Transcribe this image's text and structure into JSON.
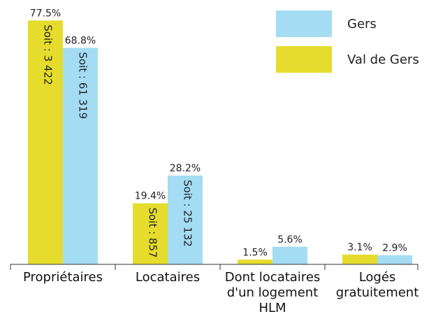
{
  "chart_data": {
    "type": "bar",
    "categories": [
      "Propriétaires",
      "Locataires",
      "Dont locataires d'un logement HLM",
      "Logés gratuitement"
    ],
    "series": [
      {
        "name": "Val de Gers",
        "color": "#e5dc2e",
        "values": [
          77.5,
          19.4,
          1.5,
          3.1
        ],
        "value_labels": [
          "77.5%",
          "19.4%",
          "1.5%",
          "3.1%"
        ],
        "inside_labels": [
          "Soit : 3 422",
          "Soit : 857",
          null,
          null
        ]
      },
      {
        "name": "Gers",
        "color": "#a4dcf4",
        "values": [
          68.8,
          28.2,
          5.6,
          2.9
        ],
        "value_labels": [
          "68.8%",
          "28.2%",
          "5.6%",
          "2.9%"
        ],
        "inside_labels": [
          "Soit : 61 319",
          "Soit : 25 132",
          null,
          null
        ]
      }
    ]
  }
}
